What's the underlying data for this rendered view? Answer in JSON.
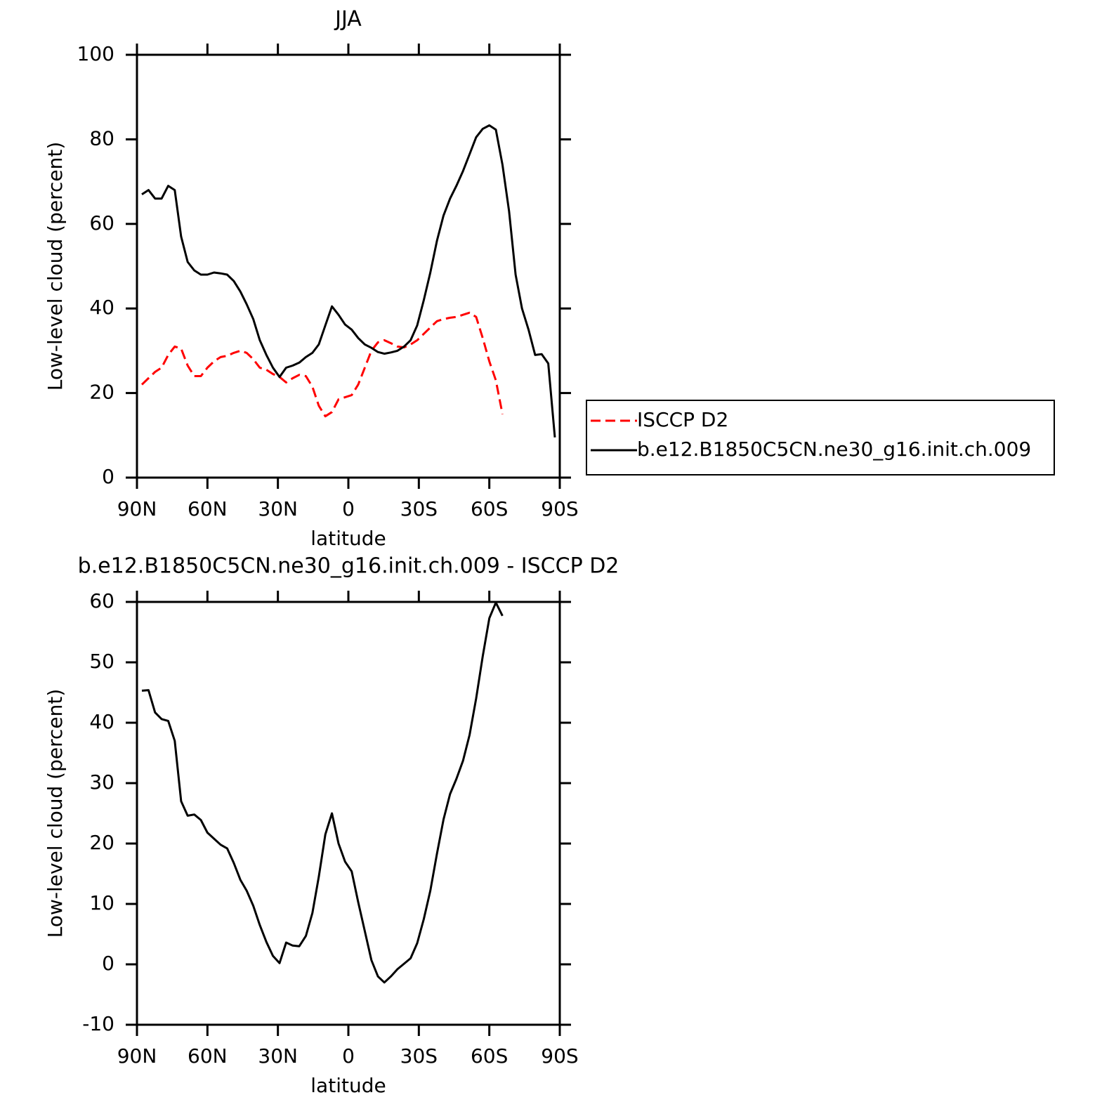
{
  "chart_data": [
    {
      "type": "line",
      "title": "JJA",
      "x_label": "latitude",
      "y_label": "Low-level cloud (percent)",
      "x": [
        87.9,
        85.1,
        82.3,
        79.5,
        76.7,
        73.9,
        71.2,
        68.4,
        65.6,
        62.8,
        60.0,
        57.2,
        54.4,
        51.6,
        48.8,
        46.0,
        43.3,
        40.5,
        37.7,
        34.9,
        32.1,
        29.3,
        26.5,
        23.7,
        20.9,
        18.1,
        15.3,
        12.6,
        9.8,
        7.0,
        4.2,
        1.4,
        -1.4,
        -4.2,
        -7.0,
        -9.8,
        -12.6,
        -15.3,
        -18.1,
        -20.9,
        -23.7,
        -26.5,
        -29.3,
        -32.1,
        -34.9,
        -37.7,
        -40.5,
        -43.3,
        -46.0,
        -48.8,
        -51.6,
        -54.4,
        -57.2,
        -60.0,
        -62.8,
        -65.6,
        -68.4,
        -71.2,
        -73.9,
        -76.7,
        -79.5,
        -82.3,
        -85.1,
        -87.9
      ],
      "series": [
        {
          "name": "ISCCP D2",
          "color": "#ff0000",
          "dashed": true,
          "values": [
            22,
            23.5,
            25,
            26,
            29,
            31,
            30.5,
            26.5,
            24,
            24,
            26,
            27.5,
            28.5,
            28.8,
            29.5,
            30,
            29.5,
            28,
            26,
            25.5,
            24.5,
            23.8,
            22.5,
            23.5,
            24.3,
            24,
            21.5,
            17,
            14.5,
            15.5,
            18.5,
            19,
            19.5,
            22,
            26,
            30,
            32,
            32.5,
            31.8,
            31,
            30.8,
            31.5,
            32.5,
            34,
            35.5,
            37,
            37.5,
            37.8,
            38,
            38.5,
            39,
            38,
            33,
            27.5,
            23,
            15,
            null,
            null,
            null,
            null,
            null,
            null,
            null,
            null
          ]
        },
        {
          "name": "b.e12.B1850C5CN.ne30_g16.init.ch.009",
          "color": "#000000",
          "dashed": false,
          "values": [
            67,
            68,
            66,
            66,
            69,
            68,
            57,
            51,
            49,
            48,
            48,
            48.5,
            48.3,
            48,
            46.5,
            44,
            41,
            37.5,
            32.5,
            29,
            26,
            23.8,
            26,
            26.5,
            27.2,
            28.5,
            29.5,
            31.5,
            36,
            40.5,
            38.5,
            36.2,
            35,
            33,
            31.5,
            30.7,
            29.7,
            29.3,
            29.6,
            30,
            31,
            32.5,
            36,
            42,
            48.5,
            56,
            62,
            66,
            69,
            72.5,
            76.5,
            80.5,
            82.5,
            83.3,
            82.3,
            74,
            63,
            48,
            40,
            35,
            29,
            29.2,
            27,
            9.5
          ]
        }
      ],
      "xlim": [
        90,
        -90
      ],
      "xticks": [
        {
          "value": 90,
          "label": "90N"
        },
        {
          "value": 60,
          "label": "60N"
        },
        {
          "value": 30,
          "label": "30N"
        },
        0,
        {
          "value": -30,
          "label": "30S"
        },
        {
          "value": -60,
          "label": "60S"
        },
        {
          "value": -90,
          "label": "90S"
        }
      ],
      "ylim": [
        0,
        100
      ],
      "yticks": [
        0,
        20,
        40,
        60,
        80,
        100
      ],
      "legend": "right"
    },
    {
      "type": "line",
      "title": "b.e12.B1850C5CN.ne30_g16.init.ch.009 - ISCCP D2",
      "x_label": "latitude",
      "y_label": "Low-level cloud (percent)",
      "x": [
        87.9,
        85.1,
        82.3,
        79.5,
        76.7,
        73.9,
        71.2,
        68.4,
        65.6,
        62.8,
        60.0,
        57.2,
        54.4,
        51.6,
        48.8,
        46.0,
        43.3,
        40.5,
        37.7,
        34.9,
        32.1,
        29.3,
        26.5,
        23.7,
        20.9,
        18.1,
        15.3,
        12.6,
        9.8,
        7.0,
        4.2,
        1.4,
        -1.4,
        -4.2,
        -7.0,
        -9.8,
        -12.6,
        -15.3,
        -18.1,
        -20.9,
        -23.7,
        -26.5,
        -29.3,
        -32.1,
        -34.9,
        -37.7,
        -40.5,
        -43.3,
        -46.0,
        -48.8,
        -51.6,
        -54.4,
        -57.2,
        -60.0,
        -62.8,
        -65.6,
        -68.4,
        -71.2,
        -73.9,
        -76.7,
        -79.5,
        -82.3,
        -85.1,
        -87.9
      ],
      "series": [
        {
          "color": "#000000",
          "dashed": false,
          "values": [
            45.3,
            45.4,
            41.7,
            40.6,
            40.3,
            37,
            27,
            24.6,
            24.8,
            23.9,
            21.8,
            20.8,
            19.8,
            19.2,
            16.8,
            14,
            12.2,
            9.7,
            6.5,
            3.7,
            1.4,
            0.2,
            3.6,
            3.1,
            3,
            4.7,
            8.5,
            14.5,
            21.5,
            25,
            20,
            17,
            15.4,
            10.3,
            5.5,
            0.7,
            -2,
            -3,
            -2,
            -0.8,
            0.1,
            1,
            3.5,
            7.5,
            12.2,
            18.3,
            24,
            28.2,
            30.7,
            33.7,
            38,
            44,
            51,
            57.3,
            59.9,
            57.7,
            null,
            null,
            null,
            null,
            null,
            null,
            null,
            null
          ]
        }
      ],
      "xlim": [
        90,
        -90
      ],
      "xticks": [
        {
          "value": 90,
          "label": "90N"
        },
        {
          "value": 60,
          "label": "60N"
        },
        {
          "value": 30,
          "label": "30N"
        },
        0,
        {
          "value": -30,
          "label": "30S"
        },
        {
          "value": -60,
          "label": "60S"
        },
        {
          "value": -90,
          "label": "90S"
        }
      ],
      "ylim": [
        -10,
        60
      ],
      "yticks": [
        -10,
        0,
        10,
        20,
        30,
        40,
        50,
        60
      ]
    }
  ]
}
